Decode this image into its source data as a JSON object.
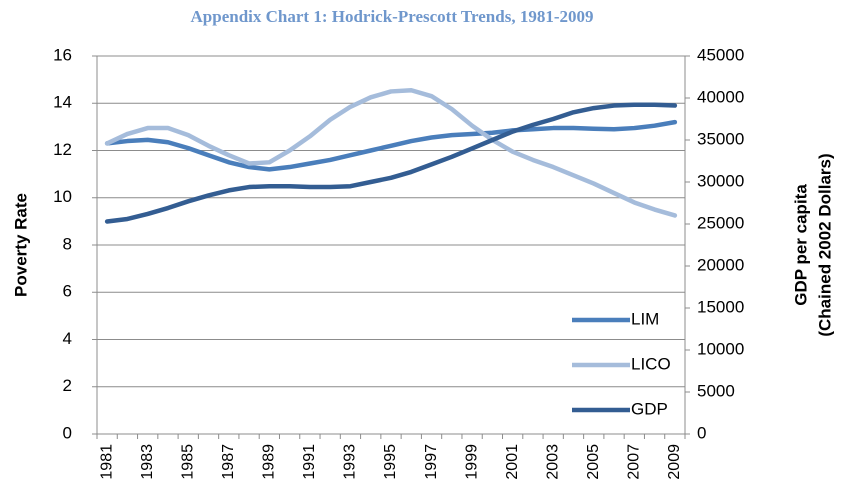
{
  "chart_data": {
    "type": "line",
    "title": "Appendix Chart 1: Hodrick-Prescott Trends, 1981-2009",
    "ylabel": "Poverty Rate",
    "y2label": [
      "GDP per capita",
      "(Chained 2002 Dollars)"
    ],
    "categories": [
      "1981",
      null,
      "1983",
      null,
      "1985",
      null,
      "1987",
      null,
      "1989",
      null,
      "1991",
      null,
      "1993",
      null,
      "1995",
      null,
      "1997",
      null,
      "1999",
      null,
      "2001",
      null,
      "2003",
      null,
      "2005",
      null,
      "2007",
      null,
      "2009"
    ],
    "series": [
      {
        "name": "LIM",
        "color": "#4a7ebb",
        "values": [
          12.3,
          12.4,
          12.45,
          12.35,
          12.1,
          11.8,
          11.5,
          11.3,
          11.2,
          11.3,
          11.45,
          11.6,
          11.8,
          12.0,
          12.2,
          12.4,
          12.55,
          12.65,
          12.7,
          12.75,
          12.85,
          12.9,
          12.95,
          12.95,
          12.92,
          12.9,
          12.95,
          13.05,
          13.2
        ]
      },
      {
        "name": "LICO",
        "color": "#a5bcdb",
        "values": [
          12.3,
          12.7,
          12.95,
          12.95,
          12.65,
          12.2,
          11.8,
          11.45,
          11.5,
          12.0,
          12.6,
          13.3,
          13.85,
          14.25,
          14.5,
          14.55,
          14.3,
          13.75,
          13.05,
          12.45,
          11.95,
          11.6,
          11.3,
          10.95,
          10.6,
          10.2,
          9.8,
          9.5,
          9.25
        ]
      },
      {
        "name": "GDP",
        "color": "#335d92",
        "axis": "y2",
        "values": [
          25300,
          25600,
          26200,
          26900,
          27700,
          28400,
          29000,
          29400,
          29500,
          29500,
          29400,
          29400,
          29500,
          30000,
          30500,
          31200,
          32100,
          33000,
          34000,
          35000,
          36000,
          36800,
          37500,
          38300,
          38800,
          39100,
          39200,
          39200,
          39100
        ]
      }
    ],
    "ylim": [
      0,
      16
    ],
    "yticks": [
      0,
      2,
      4,
      6,
      8,
      10,
      12,
      14,
      16
    ],
    "y2lim": [
      0,
      45000
    ],
    "y2ticks": [
      0,
      5000,
      10000,
      15000,
      20000,
      25000,
      30000,
      35000,
      40000,
      45000
    ],
    "grid": true,
    "legend": "lower right"
  }
}
